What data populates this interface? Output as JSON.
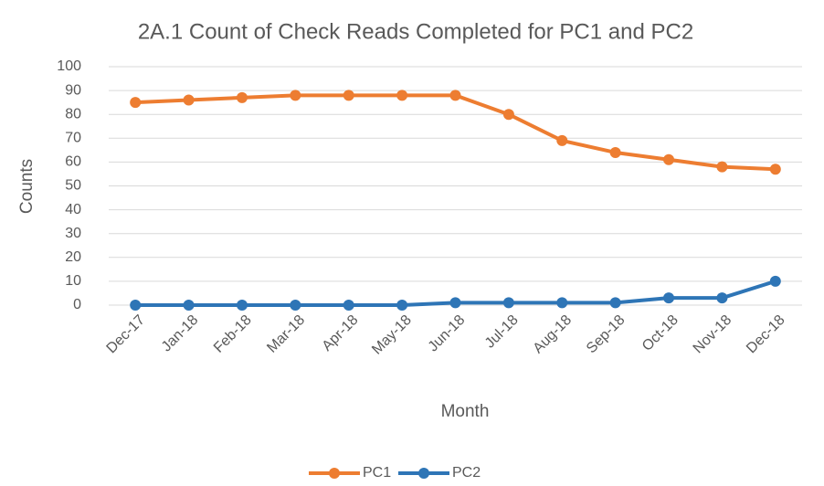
{
  "chart_data": {
    "type": "line",
    "title": "2A.1 Count of Check Reads Completed for PC1 and PC2",
    "x_label": "Month",
    "y_label": "Counts",
    "categories": [
      "Dec-17",
      "Jan-18",
      "Feb-18",
      "Mar-18",
      "Apr-18",
      "May-18",
      "Jun-18",
      "Jul-18",
      "Aug-18",
      "Sep-18",
      "Oct-18",
      "Nov-18",
      "Dec-18"
    ],
    "series": [
      {
        "name": "PC1",
        "color": "#ED7D31",
        "values": [
          85,
          86,
          87,
          88,
          88,
          88,
          88,
          80,
          69,
          64,
          61,
          58,
          57
        ]
      },
      {
        "name": "PC2",
        "color": "#2E75B6",
        "values": [
          0,
          0,
          0,
          0,
          0,
          0,
          1,
          1,
          1,
          1,
          3,
          3,
          10
        ]
      }
    ],
    "ylim": [
      0,
      100
    ],
    "yticks": [
      0,
      10,
      20,
      30,
      40,
      50,
      60,
      70,
      80,
      90,
      100
    ],
    "grid": true,
    "legend": "bottom"
  }
}
